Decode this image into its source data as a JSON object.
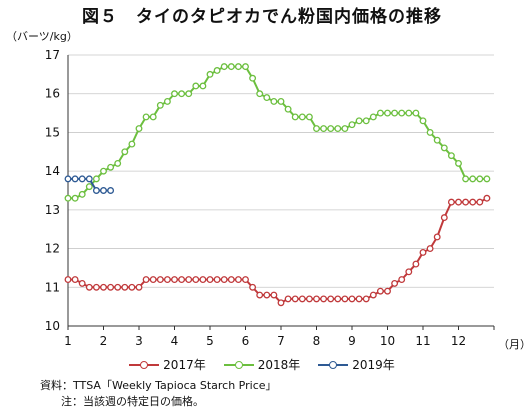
{
  "title": "図５　タイのタピオカでん粉国内価格の推移",
  "y_unit_label": "（バーツ/kg）",
  "x_unit_label": "（月）",
  "source_note": "資料：TTSA「Weekly Tapioca Starch Price」",
  "footnote": "注：当該週の特定日の価格。",
  "chart_data": {
    "type": "line",
    "title": "図５　タイのタピオカでん粉国内価格の推移",
    "ylabel": "（バーツ/kg）",
    "xlabel": "（月）",
    "ylim": [
      10,
      17
    ],
    "xlim": [
      1,
      13
    ],
    "yticks": [
      10,
      11,
      12,
      13,
      14,
      15,
      16,
      17
    ],
    "xticks": [
      1,
      2,
      3,
      4,
      5,
      6,
      7,
      8,
      9,
      10,
      11,
      12
    ],
    "grid": "horizontal",
    "legend_position": "bottom",
    "series": [
      {
        "name": "2017年",
        "color": "#c0393b",
        "x": [
          1.0,
          1.2,
          1.4,
          1.6,
          1.8,
          2.0,
          2.2,
          2.4,
          2.6,
          2.8,
          3.0,
          3.2,
          3.4,
          3.6,
          3.8,
          4.0,
          4.2,
          4.4,
          4.6,
          4.8,
          5.0,
          5.2,
          5.4,
          5.6,
          5.8,
          6.0,
          6.2,
          6.4,
          6.6,
          6.8,
          7.0,
          7.2,
          7.4,
          7.6,
          7.8,
          8.0,
          8.2,
          8.4,
          8.6,
          8.8,
          9.0,
          9.2,
          9.4,
          9.6,
          9.8,
          10.0,
          10.2,
          10.4,
          10.6,
          10.8,
          11.0,
          11.2,
          11.4,
          11.6,
          11.8,
          12.0,
          12.2,
          12.4,
          12.6,
          12.8
        ],
        "values": [
          11.2,
          11.2,
          11.1,
          11.0,
          11.0,
          11.0,
          11.0,
          11.0,
          11.0,
          11.0,
          11.0,
          11.2,
          11.2,
          11.2,
          11.2,
          11.2,
          11.2,
          11.2,
          11.2,
          11.2,
          11.2,
          11.2,
          11.2,
          11.2,
          11.2,
          11.2,
          11.0,
          10.8,
          10.8,
          10.8,
          10.6,
          10.7,
          10.7,
          10.7,
          10.7,
          10.7,
          10.7,
          10.7,
          10.7,
          10.7,
          10.7,
          10.7,
          10.7,
          10.8,
          10.9,
          10.9,
          11.1,
          11.2,
          11.4,
          11.6,
          11.9,
          12.0,
          12.3,
          12.8,
          13.2,
          13.2,
          13.2,
          13.2,
          13.2,
          13.3
        ]
      },
      {
        "name": "2018年",
        "color": "#6cbf3f",
        "x": [
          1.0,
          1.2,
          1.4,
          1.6,
          1.8,
          2.0,
          2.2,
          2.4,
          2.6,
          2.8,
          3.0,
          3.2,
          3.4,
          3.6,
          3.8,
          4.0,
          4.2,
          4.4,
          4.6,
          4.8,
          5.0,
          5.2,
          5.4,
          5.6,
          5.8,
          6.0,
          6.2,
          6.4,
          6.6,
          6.8,
          7.0,
          7.2,
          7.4,
          7.6,
          7.8,
          8.0,
          8.2,
          8.4,
          8.6,
          8.8,
          9.0,
          9.2,
          9.4,
          9.6,
          9.8,
          10.0,
          10.2,
          10.4,
          10.6,
          10.8,
          11.0,
          11.2,
          11.4,
          11.6,
          11.8,
          12.0,
          12.2,
          12.4,
          12.6,
          12.8
        ],
        "values": [
          13.3,
          13.3,
          13.4,
          13.6,
          13.8,
          14.0,
          14.1,
          14.2,
          14.5,
          14.7,
          15.1,
          15.4,
          15.4,
          15.7,
          15.8,
          16.0,
          16.0,
          16.0,
          16.2,
          16.2,
          16.5,
          16.6,
          16.7,
          16.7,
          16.7,
          16.7,
          16.4,
          16.0,
          15.9,
          15.8,
          15.8,
          15.6,
          15.4,
          15.4,
          15.4,
          15.1,
          15.1,
          15.1,
          15.1,
          15.1,
          15.2,
          15.3,
          15.3,
          15.4,
          15.5,
          15.5,
          15.5,
          15.5,
          15.5,
          15.5,
          15.3,
          15.0,
          14.8,
          14.6,
          14.4,
          14.2,
          13.8,
          13.8,
          13.8,
          13.8
        ]
      },
      {
        "name": "2019年",
        "color": "#2e5a94",
        "x": [
          1.0,
          1.2,
          1.4,
          1.6,
          1.8,
          2.0,
          2.2
        ],
        "values": [
          13.8,
          13.8,
          13.8,
          13.8,
          13.5,
          13.5,
          13.5
        ]
      }
    ]
  }
}
